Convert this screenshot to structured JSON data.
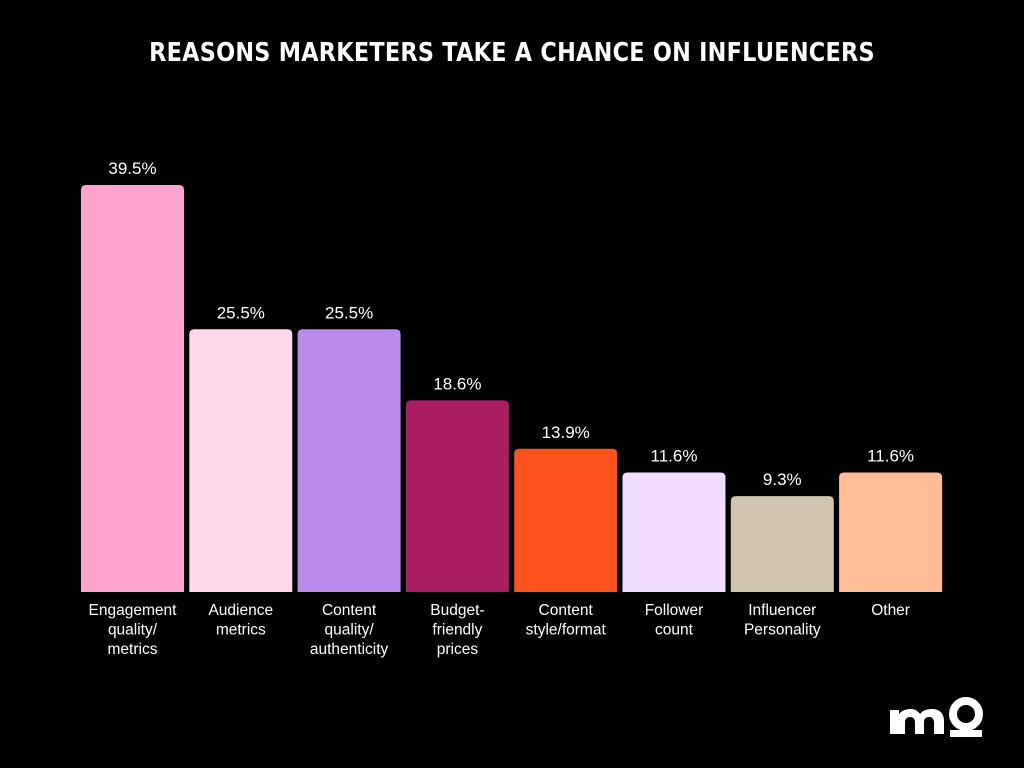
{
  "chart_data": {
    "type": "bar",
    "title": "REASONS MARKETERS TAKE A CHANCE ON INFLUENCERS",
    "categories": [
      [
        "Engagement",
        "quality/",
        "metrics"
      ],
      [
        "Audience",
        "metrics"
      ],
      [
        "Content",
        "quality/",
        "authenticity"
      ],
      [
        "Budget-",
        "friendly",
        "prices"
      ],
      [
        "Content",
        "style/format"
      ],
      [
        "Follower",
        "count"
      ],
      [
        "Influencer",
        "Personality"
      ],
      [
        "Other"
      ]
    ],
    "values": [
      39.5,
      25.5,
      25.5,
      18.6,
      13.9,
      11.6,
      9.3,
      11.6
    ],
    "value_labels": [
      "39.5%",
      "25.5%",
      "25.5%",
      "18.6%",
      "13.9%",
      "11.6%",
      "9.3%",
      "11.6%"
    ],
    "colors": [
      "#FFA3CF",
      "#FFD9EB",
      "#BB8CEE",
      "#AA1F64",
      "#FF521D",
      "#F2DDFF",
      "#D1C5B0",
      "#FFBD97"
    ],
    "ylim": [
      0,
      39.5
    ],
    "grid": false,
    "legend": "none"
  },
  "brand": {
    "logo_icon": "mo-logo-icon",
    "logo_color": "#FFFFFF"
  }
}
